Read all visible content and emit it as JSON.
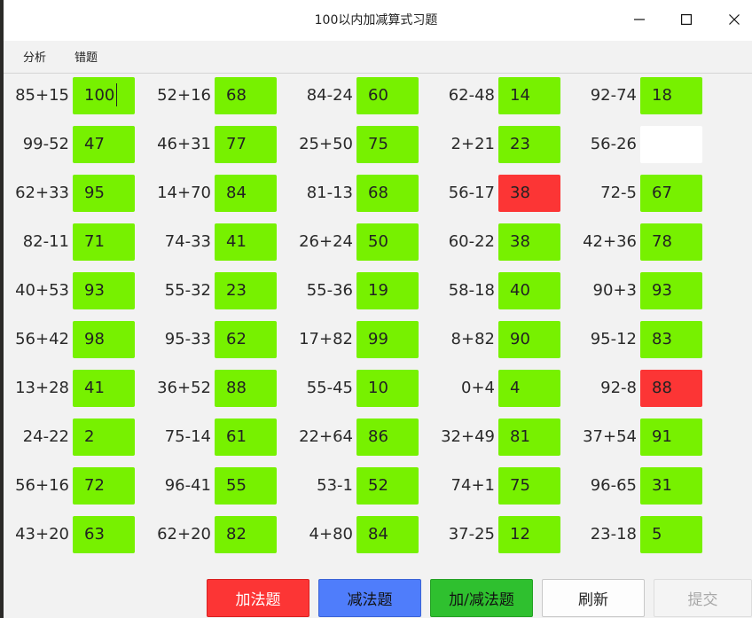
{
  "window": {
    "title": "100以内加减算式习题",
    "minimize_glyph": "—",
    "maximize_glyph": "☐",
    "close_glyph": "✕"
  },
  "menu": [
    "分析",
    "错题"
  ],
  "problems": [
    {
      "expr": "85+15",
      "answer": "100",
      "status": "ok",
      "focused": true
    },
    {
      "expr": "52+16",
      "answer": "68",
      "status": "ok"
    },
    {
      "expr": "84-24",
      "answer": "60",
      "status": "ok"
    },
    {
      "expr": "62-48",
      "answer": "14",
      "status": "ok"
    },
    {
      "expr": "92-74",
      "answer": "18",
      "status": "ok"
    },
    {
      "expr": "99-52",
      "answer": "47",
      "status": "ok"
    },
    {
      "expr": "46+31",
      "answer": "77",
      "status": "ok"
    },
    {
      "expr": "25+50",
      "answer": "75",
      "status": "ok"
    },
    {
      "expr": "2+21",
      "answer": "23",
      "status": "ok"
    },
    {
      "expr": "56-26",
      "answer": "",
      "status": "empty"
    },
    {
      "expr": "62+33",
      "answer": "95",
      "status": "ok"
    },
    {
      "expr": "14+70",
      "answer": "84",
      "status": "ok"
    },
    {
      "expr": "81-13",
      "answer": "68",
      "status": "ok"
    },
    {
      "expr": "56-17",
      "answer": "38",
      "status": "bad"
    },
    {
      "expr": "72-5",
      "answer": "67",
      "status": "ok"
    },
    {
      "expr": "82-11",
      "answer": "71",
      "status": "ok"
    },
    {
      "expr": "74-33",
      "answer": "41",
      "status": "ok"
    },
    {
      "expr": "26+24",
      "answer": "50",
      "status": "ok"
    },
    {
      "expr": "60-22",
      "answer": "38",
      "status": "ok"
    },
    {
      "expr": "42+36",
      "answer": "78",
      "status": "ok"
    },
    {
      "expr": "40+53",
      "answer": "93",
      "status": "ok"
    },
    {
      "expr": "55-32",
      "answer": "23",
      "status": "ok"
    },
    {
      "expr": "55-36",
      "answer": "19",
      "status": "ok"
    },
    {
      "expr": "58-18",
      "answer": "40",
      "status": "ok"
    },
    {
      "expr": "90+3",
      "answer": "93",
      "status": "ok"
    },
    {
      "expr": "56+42",
      "answer": "98",
      "status": "ok"
    },
    {
      "expr": "95-33",
      "answer": "62",
      "status": "ok"
    },
    {
      "expr": "17+82",
      "answer": "99",
      "status": "ok"
    },
    {
      "expr": "8+82",
      "answer": "90",
      "status": "ok"
    },
    {
      "expr": "95-12",
      "answer": "83",
      "status": "ok"
    },
    {
      "expr": "13+28",
      "answer": "41",
      "status": "ok"
    },
    {
      "expr": "36+52",
      "answer": "88",
      "status": "ok"
    },
    {
      "expr": "55-45",
      "answer": "10",
      "status": "ok"
    },
    {
      "expr": "0+4",
      "answer": "4",
      "status": "ok"
    },
    {
      "expr": "92-8",
      "answer": "88",
      "status": "bad"
    },
    {
      "expr": "24-22",
      "answer": "2",
      "status": "ok"
    },
    {
      "expr": "75-14",
      "answer": "61",
      "status": "ok"
    },
    {
      "expr": "22+64",
      "answer": "86",
      "status": "ok"
    },
    {
      "expr": "32+49",
      "answer": "81",
      "status": "ok"
    },
    {
      "expr": "37+54",
      "answer": "91",
      "status": "ok"
    },
    {
      "expr": "56+16",
      "answer": "72",
      "status": "ok"
    },
    {
      "expr": "96-41",
      "answer": "55",
      "status": "ok"
    },
    {
      "expr": "53-1",
      "answer": "52",
      "status": "ok"
    },
    {
      "expr": "74+1",
      "answer": "75",
      "status": "ok"
    },
    {
      "expr": "96-65",
      "answer": "31",
      "status": "ok"
    },
    {
      "expr": "43+20",
      "answer": "63",
      "status": "ok"
    },
    {
      "expr": "62+20",
      "answer": "82",
      "status": "ok"
    },
    {
      "expr": "4+80",
      "answer": "84",
      "status": "ok"
    },
    {
      "expr": "37-25",
      "answer": "12",
      "status": "ok"
    },
    {
      "expr": "23-18",
      "answer": "5",
      "status": "ok"
    }
  ],
  "buttons": [
    {
      "label": "加法题",
      "name": "addition-button",
      "bg": "#fc3535",
      "fg": "#ffffff",
      "border": "#d82020",
      "enabled": true
    },
    {
      "label": "减法题",
      "name": "subtraction-button",
      "bg": "#4f7dfb",
      "fg": "#111111",
      "border": "#3a63d6",
      "enabled": true
    },
    {
      "label": "加/减法题",
      "name": "mixed-button",
      "bg": "#2fc02f",
      "fg": "#111111",
      "border": "#24a024",
      "enabled": true
    },
    {
      "label": "刷新",
      "name": "refresh-button",
      "bg": "#fdfdfd",
      "fg": "#222222",
      "border": "#c8c8c8",
      "enabled": true
    },
    {
      "label": "提交",
      "name": "submit-button",
      "bg": "#f4f4f4",
      "fg": "#a8a8a8",
      "border": "#dddddd",
      "enabled": false
    }
  ]
}
